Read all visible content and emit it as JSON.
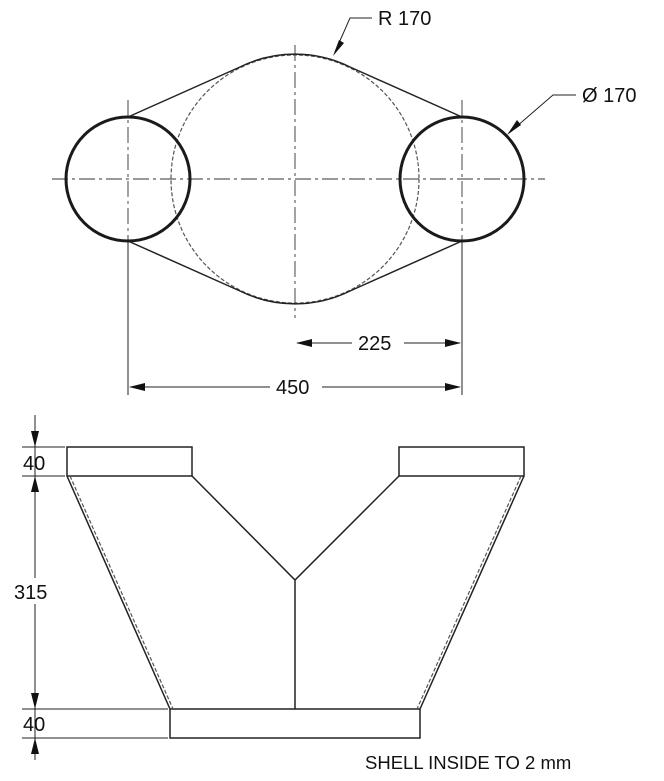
{
  "top_view": {
    "radius_label": "R 170",
    "diameter_label": "Ø 170",
    "center_distance_label": "225",
    "overall_width_label": "450"
  },
  "front_view": {
    "top_flange_height_label": "40",
    "body_height_label": "315",
    "bottom_flange_height_label": "40",
    "note": "SHELL INSIDE TO 2 mm"
  }
}
